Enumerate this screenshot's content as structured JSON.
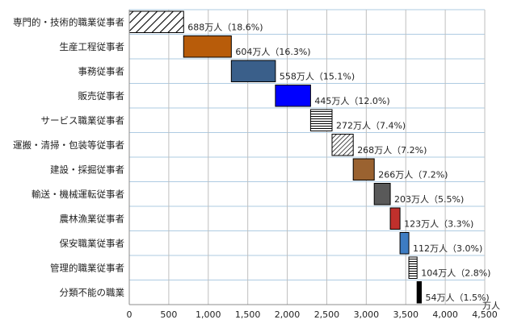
{
  "chart_data": {
    "type": "bar",
    "subtype": "waterfall",
    "orientation": "horizontal",
    "unit": "万人",
    "xlim": [
      0,
      4500
    ],
    "xticks": [
      0,
      500,
      1000,
      1500,
      2000,
      2500,
      3000,
      3500,
      4000,
      4500
    ],
    "xtick_labels": [
      "0",
      "500",
      "1,000",
      "1,500",
      "2,000",
      "2,500",
      "3,000",
      "3,500",
      "4,000",
      "4,500"
    ],
    "categories": [
      "専門的・技術的職業従事者",
      "生産工程従事者",
      "事務従事者",
      "販売従事者",
      "サービス職業従事者",
      "運搬・清掃・包装等従事者",
      "建設・採掘従事者",
      "輸送・機械運転従事者",
      "農林漁業従事者",
      "保安職業従事者",
      "管理的職業従事者",
      "分類不能の職業"
    ],
    "values": [
      688,
      604,
      558,
      445,
      272,
      268,
      266,
      203,
      123,
      112,
      104,
      54
    ],
    "data_labels": [
      "688万人（18.6%)",
      "604万人（16.3%)",
      "558万人（15.1%)",
      "445万人（12.0%)",
      "272万人（7.4%)",
      "268万人（7.2%)",
      "266万人（7.2%)",
      "203万人（5.5%)",
      "123万人（3.3%)",
      "112万人（3.0%)",
      "104万人（2.8%)",
      "54万人（1.5%)"
    ],
    "bar_styles": [
      {
        "fill": "#ffffff",
        "pattern": "diagonal-wide"
      },
      {
        "fill": "#b85c0a",
        "pattern": "none"
      },
      {
        "fill": "#3a5f8a",
        "pattern": "none"
      },
      {
        "fill": "#0000ff",
        "pattern": "none"
      },
      {
        "fill": "#ffffff",
        "pattern": "horizontal"
      },
      {
        "fill": "#ffffff",
        "pattern": "diagonal"
      },
      {
        "fill": "#9a6230",
        "pattern": "none"
      },
      {
        "fill": "#595959",
        "pattern": "none"
      },
      {
        "fill": "#c0302c",
        "pattern": "none"
      },
      {
        "fill": "#3d7cc2",
        "pattern": "none"
      },
      {
        "fill": "#ffffff",
        "pattern": "horizontal"
      },
      {
        "fill": "#000000",
        "pattern": "none"
      }
    ],
    "grid": true,
    "legend": "none"
  }
}
